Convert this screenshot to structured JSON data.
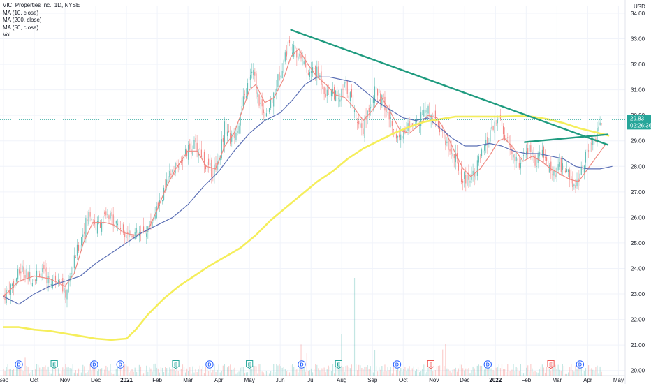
{
  "legend": {
    "title": "VICI Properties Inc., 1D, NYSE",
    "ma10": "MA (10, close)",
    "ma200": "MA (200, close)",
    "ma50": "MA (50, close)",
    "vol": "Vol"
  },
  "currency": "USD",
  "price_badge": {
    "price": "29.83",
    "countdown": "02:26:36"
  },
  "colors": {
    "up": "#26a69a",
    "down": "#ef5350",
    "ma10": "#ef8a82",
    "ma50": "#5b6fb5",
    "ma200": "#f5ee5b",
    "trend": "#1f9b7f",
    "badge": "#26a69a",
    "event_dividend": "#2962ff",
    "event_earnings_pos": "#26a69a",
    "event_earnings_neg": "#ef5350"
  },
  "chart_data": {
    "type": "line",
    "y_ticks": [
      "20.00",
      "21.00",
      "22.00",
      "23.00",
      "24.00",
      "25.00",
      "26.00",
      "27.00",
      "28.00",
      "29.00",
      "30.00",
      "31.00",
      "32.00",
      "33.00",
      "34.00"
    ],
    "ylim": [
      19.8,
      34.3
    ],
    "x_labels": [
      {
        "t": 0,
        "label": "Sep"
      },
      {
        "t": 1,
        "label": "Oct"
      },
      {
        "t": 2,
        "label": "Nov"
      },
      {
        "t": 3,
        "label": "Dec"
      },
      {
        "t": 4,
        "label": "2021",
        "bold": true
      },
      {
        "t": 5,
        "label": "Feb"
      },
      {
        "t": 6,
        "label": "Mar"
      },
      {
        "t": 7,
        "label": "Apr"
      },
      {
        "t": 8,
        "label": "May"
      },
      {
        "t": 9,
        "label": "Jun"
      },
      {
        "t": 10,
        "label": "Jul"
      },
      {
        "t": 11,
        "label": "Aug"
      },
      {
        "t": 12,
        "label": "Sep"
      },
      {
        "t": 13,
        "label": "Oct"
      },
      {
        "t": 14,
        "label": "Nov"
      },
      {
        "t": 15,
        "label": "Dec"
      },
      {
        "t": 16,
        "label": "2022",
        "bold": true
      },
      {
        "t": 17,
        "label": "Feb"
      },
      {
        "t": 18,
        "label": "Mar"
      },
      {
        "t": 19,
        "label": "Apr"
      },
      {
        "t": 20,
        "label": "May"
      }
    ],
    "xlim": [
      0,
      20.15
    ],
    "price_path": [
      [
        0,
        22.9
      ],
      [
        0.3,
        23.4
      ],
      [
        0.6,
        24.0
      ],
      [
        0.9,
        23.6
      ],
      [
        1.2,
        23.9
      ],
      [
        1.5,
        23.5
      ],
      [
        1.8,
        23.8
      ],
      [
        2.0,
        22.9
      ],
      [
        2.3,
        24.3
      ],
      [
        2.6,
        25.5
      ],
      [
        2.8,
        26.2
      ],
      [
        3.0,
        25.6
      ],
      [
        3.3,
        26.0
      ],
      [
        3.6,
        25.9
      ],
      [
        3.9,
        25.5
      ],
      [
        4.2,
        25.4
      ],
      [
        4.5,
        25.3
      ],
      [
        4.8,
        25.8
      ],
      [
        5.1,
        26.6
      ],
      [
        5.4,
        27.6
      ],
      [
        5.7,
        28.1
      ],
      [
        6.0,
        28.6
      ],
      [
        6.2,
        28.8
      ],
      [
        6.4,
        28.6
      ],
      [
        6.6,
        28.0
      ],
      [
        6.8,
        27.8
      ],
      [
        7.0,
        28.3
      ],
      [
        7.2,
        29.6
      ],
      [
        7.4,
        29.0
      ],
      [
        7.6,
        29.5
      ],
      [
        7.8,
        30.5
      ],
      [
        8.0,
        31.4
      ],
      [
        8.1,
        31.8
      ],
      [
        8.3,
        30.6
      ],
      [
        8.5,
        30.1
      ],
      [
        8.7,
        30.4
      ],
      [
        8.9,
        31.3
      ],
      [
        9.1,
        32.1
      ],
      [
        9.3,
        32.9
      ],
      [
        9.5,
        32.4
      ],
      [
        9.7,
        32.3
      ],
      [
        9.9,
        31.6
      ],
      [
        10.1,
        31.8
      ],
      [
        10.3,
        31.5
      ],
      [
        10.5,
        30.8
      ],
      [
        10.7,
        31.0
      ],
      [
        10.9,
        30.5
      ],
      [
        11.1,
        31.2
      ],
      [
        11.3,
        30.7
      ],
      [
        11.5,
        29.8
      ],
      [
        11.7,
        29.5
      ],
      [
        11.9,
        30.4
      ],
      [
        12.1,
        31.0
      ],
      [
        12.3,
        30.6
      ],
      [
        12.5,
        30.0
      ],
      [
        12.7,
        29.4
      ],
      [
        12.9,
        29.1
      ],
      [
        13.1,
        29.6
      ],
      [
        13.3,
        29.4
      ],
      [
        13.5,
        29.9
      ],
      [
        13.7,
        30.3
      ],
      [
        13.9,
        30.1
      ],
      [
        14.1,
        29.8
      ],
      [
        14.3,
        29.2
      ],
      [
        14.5,
        28.7
      ],
      [
        14.7,
        28.3
      ],
      [
        14.9,
        27.6
      ],
      [
        15.1,
        27.5
      ],
      [
        15.3,
        27.8
      ],
      [
        15.5,
        28.3
      ],
      [
        15.7,
        28.8
      ],
      [
        15.9,
        29.4
      ],
      [
        16.1,
        29.9
      ],
      [
        16.3,
        29.2
      ],
      [
        16.5,
        28.6
      ],
      [
        16.7,
        28.1
      ],
      [
        16.9,
        28.3
      ],
      [
        17.1,
        28.7
      ],
      [
        17.3,
        28.1
      ],
      [
        17.5,
        28.5
      ],
      [
        17.7,
        28.0
      ],
      [
        17.9,
        27.6
      ],
      [
        18.1,
        28.0
      ],
      [
        18.3,
        27.9
      ],
      [
        18.5,
        27.3
      ],
      [
        18.7,
        27.5
      ],
      [
        18.9,
        28.3
      ],
      [
        19.1,
        28.8
      ],
      [
        19.3,
        29.2
      ],
      [
        19.45,
        29.83
      ]
    ],
    "series": [
      {
        "id": "ma10",
        "name": "MA (10, close)",
        "points": [
          [
            0,
            22.9
          ],
          [
            0.5,
            23.5
          ],
          [
            1,
            23.7
          ],
          [
            1.5,
            23.6
          ],
          [
            2,
            23.3
          ],
          [
            2.3,
            23.8
          ],
          [
            2.6,
            25.0
          ],
          [
            2.9,
            25.8
          ],
          [
            3.3,
            25.8
          ],
          [
            3.6,
            25.7
          ],
          [
            3.9,
            25.4
          ],
          [
            4.3,
            25.3
          ],
          [
            4.7,
            25.5
          ],
          [
            5.0,
            26.3
          ],
          [
            5.3,
            27.2
          ],
          [
            5.6,
            27.9
          ],
          [
            6.0,
            28.6
          ],
          [
            6.3,
            28.6
          ],
          [
            6.6,
            28.0
          ],
          [
            6.9,
            27.9
          ],
          [
            7.2,
            28.8
          ],
          [
            7.5,
            29.3
          ],
          [
            7.8,
            30.3
          ],
          [
            8.0,
            31.0
          ],
          [
            8.2,
            31.2
          ],
          [
            8.5,
            30.5
          ],
          [
            8.8,
            30.7
          ],
          [
            9.1,
            31.4
          ],
          [
            9.35,
            32.3
          ],
          [
            9.6,
            32.6
          ],
          [
            9.9,
            32.0
          ],
          [
            10.2,
            31.5
          ],
          [
            10.5,
            31.2
          ],
          [
            10.8,
            30.8
          ],
          [
            11.1,
            30.7
          ],
          [
            11.4,
            30.3
          ],
          [
            11.7,
            29.8
          ],
          [
            12.0,
            30.2
          ],
          [
            12.3,
            30.7
          ],
          [
            12.6,
            30.1
          ],
          [
            12.9,
            29.4
          ],
          [
            13.2,
            29.3
          ],
          [
            13.5,
            29.6
          ],
          [
            13.8,
            30.0
          ],
          [
            14.1,
            29.9
          ],
          [
            14.4,
            29.3
          ],
          [
            14.7,
            28.5
          ],
          [
            14.95,
            27.9
          ],
          [
            15.2,
            27.6
          ],
          [
            15.5,
            27.9
          ],
          [
            15.8,
            28.4
          ],
          [
            16.1,
            29.0
          ],
          [
            16.3,
            29.1
          ],
          [
            16.6,
            28.7
          ],
          [
            16.9,
            28.2
          ],
          [
            17.2,
            28.4
          ],
          [
            17.5,
            28.2
          ],
          [
            17.8,
            27.9
          ],
          [
            18.1,
            27.7
          ],
          [
            18.4,
            27.5
          ],
          [
            18.7,
            27.4
          ],
          [
            19.0,
            27.9
          ],
          [
            19.3,
            28.4
          ],
          [
            19.6,
            28.9
          ]
        ]
      },
      {
        "id": "ma50",
        "name": "MA (50, close)",
        "points": [
          [
            0,
            22.9
          ],
          [
            0.5,
            22.6
          ],
          [
            1,
            23.0
          ],
          [
            1.5,
            23.3
          ],
          [
            2,
            23.5
          ],
          [
            2.5,
            23.7
          ],
          [
            3,
            24.2
          ],
          [
            3.5,
            24.6
          ],
          [
            4,
            25.0
          ],
          [
            4.5,
            25.4
          ],
          [
            5,
            25.7
          ],
          [
            5.5,
            26.0
          ],
          [
            6,
            26.5
          ],
          [
            6.5,
            27.2
          ],
          [
            7,
            27.8
          ],
          [
            7.5,
            28.6
          ],
          [
            8,
            29.3
          ],
          [
            8.5,
            29.8
          ],
          [
            9,
            30.1
          ],
          [
            9.4,
            30.6
          ],
          [
            9.8,
            31.2
          ],
          [
            10.2,
            31.5
          ],
          [
            10.6,
            31.5
          ],
          [
            11,
            31.4
          ],
          [
            11.4,
            31.3
          ],
          [
            11.8,
            30.9
          ],
          [
            12.2,
            30.5
          ],
          [
            12.6,
            30.2
          ],
          [
            13.0,
            29.9
          ],
          [
            13.4,
            29.8
          ],
          [
            13.8,
            29.9
          ],
          [
            14.2,
            29.5
          ],
          [
            14.6,
            29.1
          ],
          [
            15.0,
            28.8
          ],
          [
            15.4,
            28.8
          ],
          [
            15.8,
            28.9
          ],
          [
            16.2,
            28.8
          ],
          [
            16.6,
            28.6
          ],
          [
            17.0,
            28.5
          ],
          [
            17.4,
            28.5
          ],
          [
            17.8,
            28.4
          ],
          [
            18.2,
            28.3
          ],
          [
            18.6,
            28.0
          ],
          [
            19.0,
            27.9
          ],
          [
            19.4,
            27.9
          ],
          [
            19.8,
            28.0
          ]
        ]
      },
      {
        "id": "ma200",
        "name": "MA (200, close)",
        "points": [
          [
            0,
            21.7
          ],
          [
            0.5,
            21.7
          ],
          [
            1,
            21.6
          ],
          [
            1.5,
            21.55
          ],
          [
            2,
            21.45
          ],
          [
            2.5,
            21.35
          ],
          [
            3,
            21.25
          ],
          [
            3.5,
            21.2
          ],
          [
            4,
            21.25
          ],
          [
            4.3,
            21.6
          ],
          [
            4.7,
            22.2
          ],
          [
            5.2,
            22.8
          ],
          [
            5.7,
            23.3
          ],
          [
            6.2,
            23.7
          ],
          [
            6.7,
            24.1
          ],
          [
            7.2,
            24.45
          ],
          [
            7.7,
            24.8
          ],
          [
            8.2,
            25.3
          ],
          [
            8.7,
            25.9
          ],
          [
            9.2,
            26.4
          ],
          [
            9.7,
            26.9
          ],
          [
            10.2,
            27.4
          ],
          [
            10.7,
            27.8
          ],
          [
            11.2,
            28.3
          ],
          [
            11.7,
            28.7
          ],
          [
            12.2,
            29.0
          ],
          [
            12.7,
            29.3
          ],
          [
            13.2,
            29.55
          ],
          [
            13.7,
            29.75
          ],
          [
            14.2,
            29.85
          ],
          [
            14.7,
            29.95
          ],
          [
            15.2,
            29.95
          ],
          [
            15.7,
            29.95
          ],
          [
            16.2,
            29.95
          ],
          [
            16.7,
            29.97
          ],
          [
            17.2,
            29.95
          ],
          [
            17.7,
            29.85
          ],
          [
            18.2,
            29.7
          ],
          [
            18.7,
            29.5
          ],
          [
            19.2,
            29.35
          ],
          [
            19.7,
            29.2
          ]
        ]
      }
    ],
    "trendlines": [
      {
        "from": [
          9.35,
          33.35
        ],
        "to": [
          19.65,
          28.85
        ]
      },
      {
        "from": [
          16.95,
          28.95
        ],
        "to": [
          19.65,
          29.25
        ]
      }
    ],
    "events": [
      {
        "t": 0.5,
        "label": "D",
        "kind": "dividend"
      },
      {
        "t": 1.65,
        "label": "E",
        "kind": "earnings_pos"
      },
      {
        "t": 2.95,
        "label": "D",
        "kind": "dividend"
      },
      {
        "t": 3.8,
        "label": "D",
        "kind": "dividend"
      },
      {
        "t": 5.6,
        "label": "E",
        "kind": "earnings_pos"
      },
      {
        "t": 6.7,
        "label": "D",
        "kind": "dividend"
      },
      {
        "t": 8.0,
        "label": "E",
        "kind": "earnings_pos"
      },
      {
        "t": 9.7,
        "label": "D",
        "kind": "dividend"
      },
      {
        "t": 10.9,
        "label": "E",
        "kind": "earnings_pos"
      },
      {
        "t": 12.8,
        "label": "D",
        "kind": "dividend"
      },
      {
        "t": 13.9,
        "label": "E",
        "kind": "earnings_neg"
      },
      {
        "t": 15.75,
        "label": "D",
        "kind": "dividend"
      },
      {
        "t": 17.8,
        "label": "E",
        "kind": "earnings_neg"
      },
      {
        "t": 18.75,
        "label": "D",
        "kind": "dividend"
      }
    ]
  }
}
